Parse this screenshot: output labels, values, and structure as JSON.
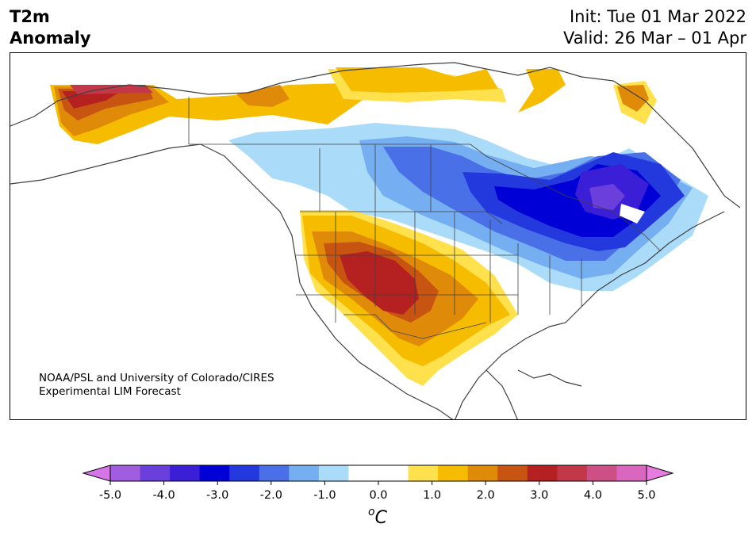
{
  "title_left": [
    "T2m",
    "Anomaly"
  ],
  "title_right": [
    "Init: Tue 01 Mar 2022",
    "Valid: 26 Mar – 01 Apr"
  ],
  "credit": [
    "NOAA/PSL and University of Colorado/CIRES",
    "Experimental LIM Forecast"
  ],
  "colorbar": {
    "ticks": [
      "-5.0",
      "-4.0",
      "-3.0",
      "-2.0",
      "-1.0",
      "0.0",
      "1.0",
      "2.0",
      "3.0",
      "4.0",
      "5.0"
    ],
    "unit_base": "C",
    "unit_sup": "o",
    "colors": [
      "#a15de0",
      "#6b3fdc",
      "#3a1fd6",
      "#0000d6",
      "#2339de",
      "#4a70e8",
      "#76aef2",
      "#aadcfa",
      "#ffffff",
      "#ffffff",
      "#ffe14d",
      "#f5bc00",
      "#e08a0a",
      "#c85412",
      "#b52020",
      "#c23848",
      "#cc4f86",
      "#d967c0"
    ],
    "under_color": "#d675e8",
    "over_color": "#e77ce0"
  },
  "map": {
    "region": "North America",
    "variable": "2m temperature anomaly",
    "colors": {
      "warm_light": "#ffe14d",
      "warm_mid": "#f5bc00",
      "warm_orange": "#e08a0a",
      "warm_dark": "#c85412",
      "warm_red": "#b52020",
      "warm_deep": "#c23848",
      "cool_light": "#aadcfa",
      "cool_mid": "#76aef2",
      "cool_blue": "#4a70e8",
      "cool_strong": "#2339de",
      "cool_deep": "#0000d6",
      "cool_violet": "#3a1fd6",
      "cool_purple": "#6b3fdc",
      "coast": "#404040"
    }
  }
}
